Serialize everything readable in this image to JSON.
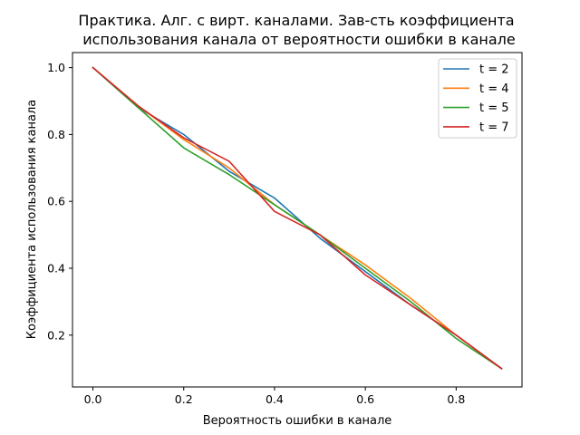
{
  "chart_data": {
    "type": "line",
    "title_lines": [
      "Практика. Алг. с вирт. каналами. Зав-сть коэффициента",
      "использования канала от вероятности ошибки в канале"
    ],
    "xlabel": "Вероятность ошибки в канале",
    "ylabel": "Коэффициента использования канала",
    "xlim": [
      -0.045,
      0.945
    ],
    "ylim": [
      0.045,
      1.045
    ],
    "xticks": [
      "0.0",
      "0.2",
      "0.4",
      "0.6",
      "0.8"
    ],
    "xtick_values": [
      0.0,
      0.2,
      0.4,
      0.6,
      0.8
    ],
    "yticks": [
      "0.2",
      "0.4",
      "0.6",
      "0.8",
      "1.0"
    ],
    "ytick_values": [
      0.2,
      0.4,
      0.6,
      0.8,
      1.0
    ],
    "grid": false,
    "legend_position": "top-right",
    "x": [
      0.0,
      0.1,
      0.2,
      0.3,
      0.4,
      0.5,
      0.6,
      0.7,
      0.8,
      0.9
    ],
    "series": [
      {
        "name": "t = 2",
        "color": "#1f77b4",
        "values": [
          1.0,
          0.88,
          0.8,
          0.69,
          0.61,
          0.49,
          0.39,
          0.29,
          0.2,
          0.1
        ]
      },
      {
        "name": "t = 4",
        "color": "#ff7f0e",
        "values": [
          1.0,
          0.885,
          0.785,
          0.7,
          0.59,
          0.5,
          0.41,
          0.31,
          0.2,
          0.1
        ]
      },
      {
        "name": "t = 5",
        "color": "#2ca02c",
        "values": [
          1.0,
          0.88,
          0.76,
          0.68,
          0.59,
          0.5,
          0.4,
          0.3,
          0.19,
          0.1
        ]
      },
      {
        "name": "t = 7",
        "color": "#d62728",
        "values": [
          1.0,
          0.885,
          0.79,
          0.72,
          0.57,
          0.5,
          0.38,
          0.29,
          0.2,
          0.1
        ]
      }
    ]
  }
}
